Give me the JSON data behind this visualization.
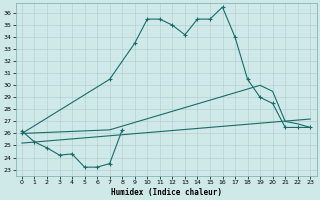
{
  "xlabel": "Humidex (Indice chaleur)",
  "xlim": [
    -0.5,
    23.5
  ],
  "ylim": [
    22.5,
    36.8
  ],
  "yticks": [
    23,
    24,
    25,
    26,
    27,
    28,
    29,
    30,
    31,
    32,
    33,
    34,
    35,
    36
  ],
  "xticks": [
    0,
    1,
    2,
    3,
    4,
    5,
    6,
    7,
    8,
    9,
    10,
    11,
    12,
    13,
    14,
    15,
    16,
    17,
    18,
    19,
    20,
    21,
    22,
    23
  ],
  "background_color": "#cfe9e9",
  "grid_color": "#b0cccc",
  "line_color": "#1a6b6b",
  "line1_x": [
    0,
    1,
    2,
    3,
    4,
    5,
    6,
    7,
    8
  ],
  "line1_y": [
    26.2,
    25.3,
    24.8,
    24.2,
    24.3,
    23.2,
    23.2,
    23.5,
    26.3
  ],
  "line2_x": [
    0,
    7,
    9,
    10,
    11,
    12,
    13,
    14,
    15,
    16,
    17,
    18,
    19,
    20,
    21,
    22,
    23
  ],
  "line2_y": [
    26.0,
    30.5,
    33.5,
    35.5,
    35.5,
    35.0,
    34.2,
    35.5,
    35.5,
    36.5,
    34.0,
    30.5,
    29.0,
    28.5,
    26.5,
    26.5,
    26.5
  ],
  "line3_x": [
    0,
    23
  ],
  "line3_y": [
    25.2,
    27.2
  ],
  "line4_x": [
    0,
    7,
    19,
    20,
    21,
    22,
    23
  ],
  "line4_y": [
    26.0,
    26.3,
    30.0,
    29.5,
    27.0,
    26.8,
    26.5
  ]
}
